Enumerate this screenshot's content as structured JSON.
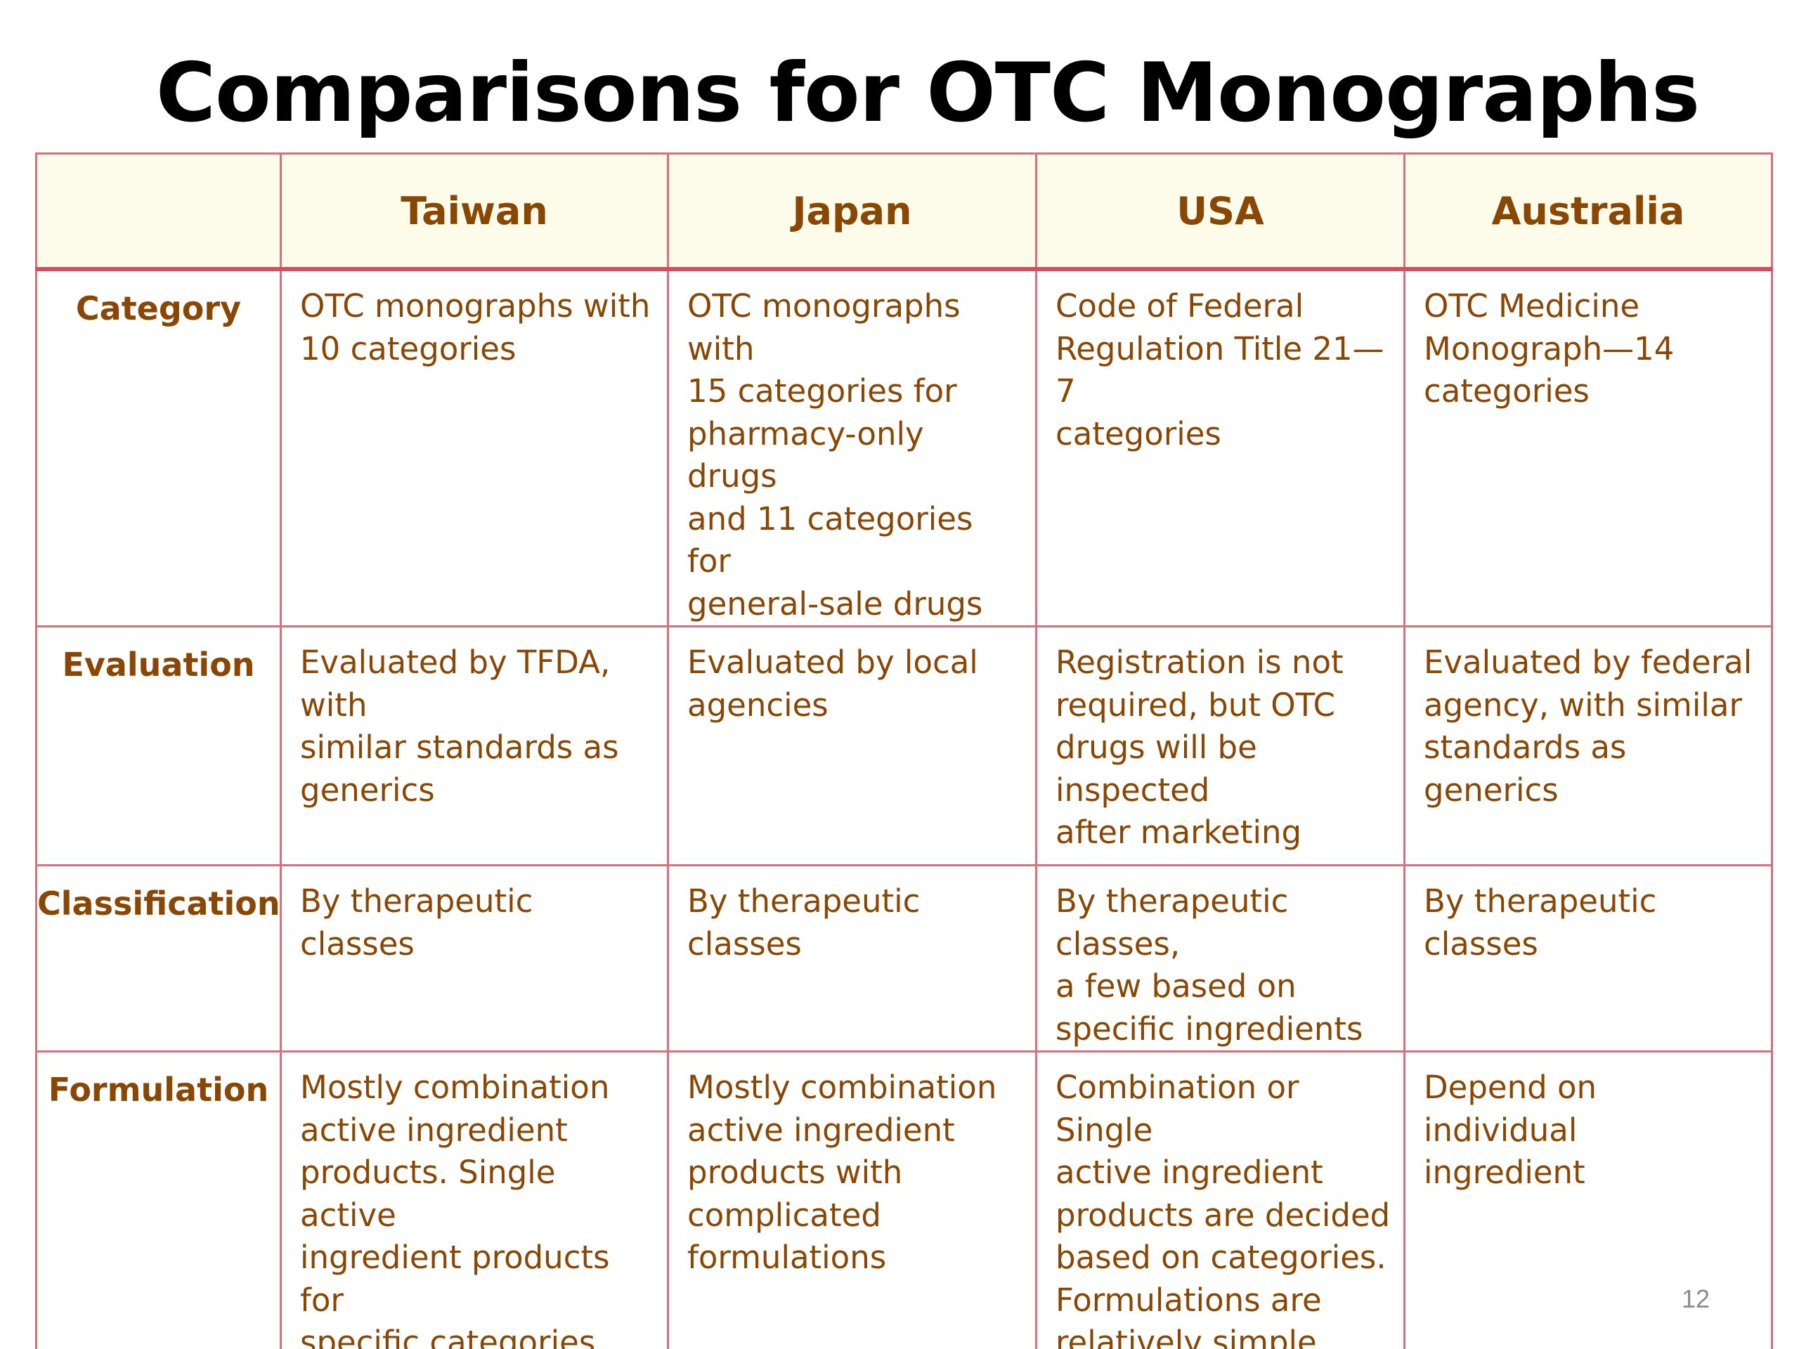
{
  "title": "Comparisons for OTC Monographs",
  "columns": [
    "",
    "Taiwan",
    "Japan",
    "USA",
    "Australia"
  ],
  "rows": [
    {
      "label": "Category",
      "cells": [
        "OTC monographs with\n10 categories",
        "OTC monographs with\n15 categories for\npharmacy-only drugs\nand 11 categories for\ngeneral-sale drugs",
        "Code of Federal\nRegulation Title 21—7\ncategories",
        "OTC Medicine\nMonograph—14\ncategories"
      ]
    },
    {
      "label": "Evaluation",
      "cells": [
        "Evaluated by TFDA, with\nsimilar standards as\ngenerics",
        "Evaluated by local\nagencies",
        "Registration is not\nrequired, but OTC\ndrugs will be inspected\nafter marketing",
        "Evaluated by federal\nagency, with similar\nstandards as generics"
      ]
    },
    {
      "label": "Classification",
      "cells": [
        "By therapeutic classes",
        "By therapeutic classes",
        "By therapeutic classes,\na few based on\nspecific ingredients",
        "By therapeutic classes"
      ]
    },
    {
      "label": "Formulation",
      "cells": [
        "Mostly combination\nactive ingredient\nproducts. Single active\ningredient products for\nspecific categories.",
        "Mostly combination\nactive ingredient\nproducts  with\ncomplicated\nformulations",
        "Combination or Single\nactive ingredient\nproducts are decided\nbased on categories.\nFormulations are\nrelatively simple.",
        "Depend on  individual\ningredient"
      ]
    }
  ],
  "page_number": "12",
  "colors": {
    "header_text": "#8a4704",
    "border": "#d9707c",
    "header_bg": "#fdfbe9"
  }
}
